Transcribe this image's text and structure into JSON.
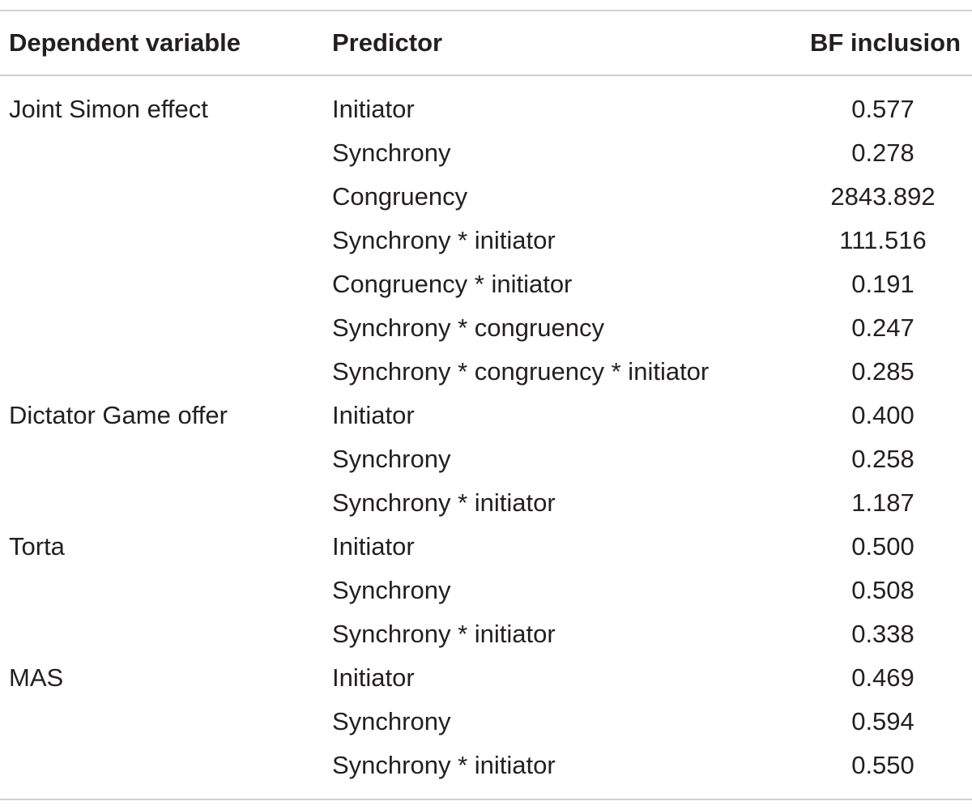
{
  "table": {
    "headers": {
      "dependent_variable": "Dependent variable",
      "predictor": "Predictor",
      "bf_inclusion": "BF inclusion"
    },
    "rows": [
      {
        "dependent_variable": "Joint Simon effect",
        "predictor": "Initiator",
        "bf_inclusion": "0.577"
      },
      {
        "dependent_variable": "",
        "predictor": "Synchrony",
        "bf_inclusion": "0.278"
      },
      {
        "dependent_variable": "",
        "predictor": "Congruency",
        "bf_inclusion": "2843.892"
      },
      {
        "dependent_variable": "",
        "predictor": "Synchrony * initiator",
        "bf_inclusion": "111.516"
      },
      {
        "dependent_variable": "",
        "predictor": "Congruency * initiator",
        "bf_inclusion": "0.191"
      },
      {
        "dependent_variable": "",
        "predictor": "Synchrony * congruency",
        "bf_inclusion": "0.247"
      },
      {
        "dependent_variable": "",
        "predictor": "Synchrony * congruency * initiator",
        "bf_inclusion": "0.285"
      },
      {
        "dependent_variable": "Dictator Game offer",
        "predictor": "Initiator",
        "bf_inclusion": "0.400"
      },
      {
        "dependent_variable": "",
        "predictor": "Synchrony",
        "bf_inclusion": "0.258"
      },
      {
        "dependent_variable": "",
        "predictor": "Synchrony * initiator",
        "bf_inclusion": "1.187"
      },
      {
        "dependent_variable": "Torta",
        "predictor": "Initiator",
        "bf_inclusion": "0.500"
      },
      {
        "dependent_variable": "",
        "predictor": "Synchrony",
        "bf_inclusion": "0.508"
      },
      {
        "dependent_variable": "",
        "predictor": "Synchrony * initiator",
        "bf_inclusion": "0.338"
      },
      {
        "dependent_variable": "MAS",
        "predictor": "Initiator",
        "bf_inclusion": "0.469"
      },
      {
        "dependent_variable": "",
        "predictor": "Synchrony",
        "bf_inclusion": "0.594"
      },
      {
        "dependent_variable": "",
        "predictor": "Synchrony * initiator",
        "bf_inclusion": "0.550"
      }
    ]
  }
}
